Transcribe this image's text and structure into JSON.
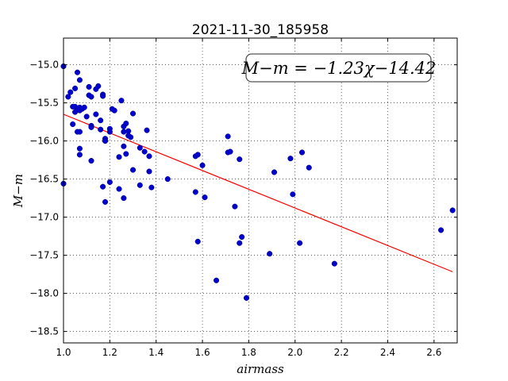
{
  "chart_data": {
    "type": "scatter",
    "title": "2021-11-30_185958",
    "xlabel": "airmass",
    "ylabel": "M−m",
    "xlim": [
      1.0,
      2.7
    ],
    "ylim": [
      -18.65,
      -14.65
    ],
    "y_inverted": true,
    "x_ticks": [
      "1.0",
      "1.2",
      "1.4",
      "1.6",
      "1.8",
      "2.0",
      "2.2",
      "2.4",
      "2.6"
    ],
    "y_ticks": [
      "−15.0",
      "−15.5",
      "−16.0",
      "−16.5",
      "−17.0",
      "−17.5",
      "−18.0",
      "−18.5"
    ],
    "grid": true,
    "annotation": "M−m = −1.23χ−14.42",
    "fit": {
      "slope": -1.23,
      "intercept": -14.42,
      "x_range": [
        1.0,
        2.68
      ],
      "color": "#ff0000"
    },
    "marker_color": "#0000cc",
    "points": [
      [
        1.0,
        -15.02
      ],
      [
        1.0,
        -16.56
      ],
      [
        1.02,
        -15.42
      ],
      [
        1.03,
        -15.36
      ],
      [
        1.04,
        -15.55
      ],
      [
        1.04,
        -15.78
      ],
      [
        1.05,
        -15.55
      ],
      [
        1.05,
        -15.31
      ],
      [
        1.05,
        -15.62
      ],
      [
        1.06,
        -15.58
      ],
      [
        1.06,
        -15.1
      ],
      [
        1.06,
        -15.88
      ],
      [
        1.07,
        -15.6
      ],
      [
        1.07,
        -15.56
      ],
      [
        1.07,
        -15.88
      ],
      [
        1.07,
        -16.1
      ],
      [
        1.07,
        -16.18
      ],
      [
        1.07,
        -15.2
      ],
      [
        1.08,
        -15.58
      ],
      [
        1.09,
        -15.56
      ],
      [
        1.1,
        -15.68
      ],
      [
        1.11,
        -15.29
      ],
      [
        1.11,
        -15.4
      ],
      [
        1.12,
        -15.8
      ],
      [
        1.12,
        -15.82
      ],
      [
        1.12,
        -16.26
      ],
      [
        1.12,
        -15.42
      ],
      [
        1.14,
        -15.32
      ],
      [
        1.14,
        -15.65
      ],
      [
        1.15,
        -15.28
      ],
      [
        1.16,
        -15.73
      ],
      [
        1.16,
        -15.85
      ],
      [
        1.17,
        -15.39
      ],
      [
        1.17,
        -15.41
      ],
      [
        1.17,
        -16.6
      ],
      [
        1.18,
        -15.97
      ],
      [
        1.18,
        -16.0
      ],
      [
        1.18,
        -16.8
      ],
      [
        1.2,
        -15.84
      ],
      [
        1.2,
        -15.88
      ],
      [
        1.2,
        -16.54
      ],
      [
        1.21,
        -15.58
      ],
      [
        1.22,
        -15.6
      ],
      [
        1.24,
        -16.21
      ],
      [
        1.24,
        -16.63
      ],
      [
        1.25,
        -15.47
      ],
      [
        1.26,
        -16.75
      ],
      [
        1.26,
        -15.81
      ],
      [
        1.26,
        -15.88
      ],
      [
        1.26,
        -16.07
      ],
      [
        1.27,
        -16.17
      ],
      [
        1.27,
        -15.77
      ],
      [
        1.28,
        -15.87
      ],
      [
        1.28,
        -15.93
      ],
      [
        1.29,
        -15.95
      ],
      [
        1.3,
        -15.64
      ],
      [
        1.3,
        -16.38
      ],
      [
        1.33,
        -16.09
      ],
      [
        1.33,
        -16.58
      ],
      [
        1.35,
        -16.14
      ],
      [
        1.36,
        -15.86
      ],
      [
        1.37,
        -16.2
      ],
      [
        1.37,
        -16.4
      ],
      [
        1.38,
        -16.61
      ],
      [
        1.45,
        -16.5
      ],
      [
        1.57,
        -16.2
      ],
      [
        1.57,
        -16.67
      ],
      [
        1.58,
        -16.18
      ],
      [
        1.58,
        -17.32
      ],
      [
        1.6,
        -16.32
      ],
      [
        1.61,
        -16.74
      ],
      [
        1.66,
        -17.83
      ],
      [
        1.71,
        -15.94
      ],
      [
        1.71,
        -16.15
      ],
      [
        1.72,
        -16.14
      ],
      [
        1.74,
        -16.86
      ],
      [
        1.76,
        -16.24
      ],
      [
        1.76,
        -17.34
      ],
      [
        1.77,
        -17.26
      ],
      [
        1.79,
        -18.06
      ],
      [
        1.89,
        -17.48
      ],
      [
        1.91,
        -16.41
      ],
      [
        1.98,
        -16.23
      ],
      [
        1.99,
        -16.7
      ],
      [
        2.02,
        -17.34
      ],
      [
        2.03,
        -16.15
      ],
      [
        2.06,
        -16.35
      ],
      [
        2.17,
        -17.61
      ],
      [
        2.63,
        -17.17
      ],
      [
        2.68,
        -16.91
      ]
    ]
  }
}
